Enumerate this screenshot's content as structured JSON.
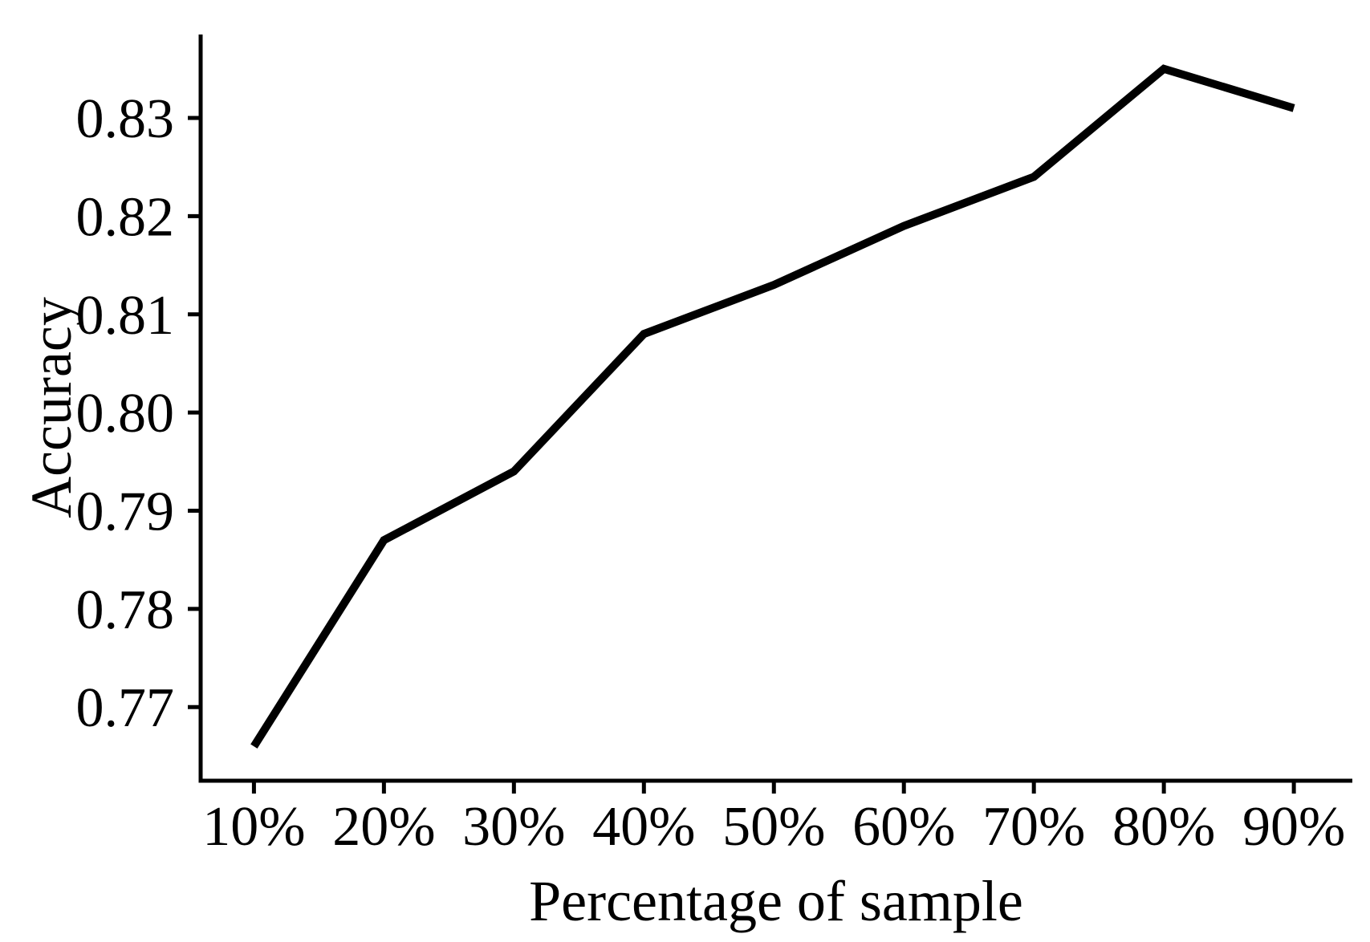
{
  "chart_data": {
    "type": "line",
    "title": "",
    "xlabel": "Percentage of sample",
    "ylabel": "Accuracy",
    "categories": [
      "10%",
      "20%",
      "30%",
      "40%",
      "50%",
      "60%",
      "70%",
      "80%",
      "90%"
    ],
    "x_values": [
      10,
      20,
      30,
      40,
      50,
      60,
      70,
      80,
      90
    ],
    "series": [
      {
        "name": "Accuracy",
        "color": "#000000",
        "values": [
          0.766,
          0.787,
          0.794,
          0.808,
          0.813,
          0.819,
          0.824,
          0.835,
          0.831
        ]
      }
    ],
    "y_tick_labels": [
      "0.77",
      "0.78",
      "0.79",
      "0.80",
      "0.81",
      "0.82",
      "0.83"
    ],
    "y_tick_values": [
      0.77,
      0.78,
      0.79,
      0.8,
      0.81,
      0.82,
      0.83
    ],
    "ylim": [
      0.7625,
      0.8385
    ],
    "xlim_pct": [
      5.9,
      94.5
    ],
    "grid": false,
    "legend": false,
    "axis_color": "#000000",
    "background_color": "#ffffff"
  }
}
